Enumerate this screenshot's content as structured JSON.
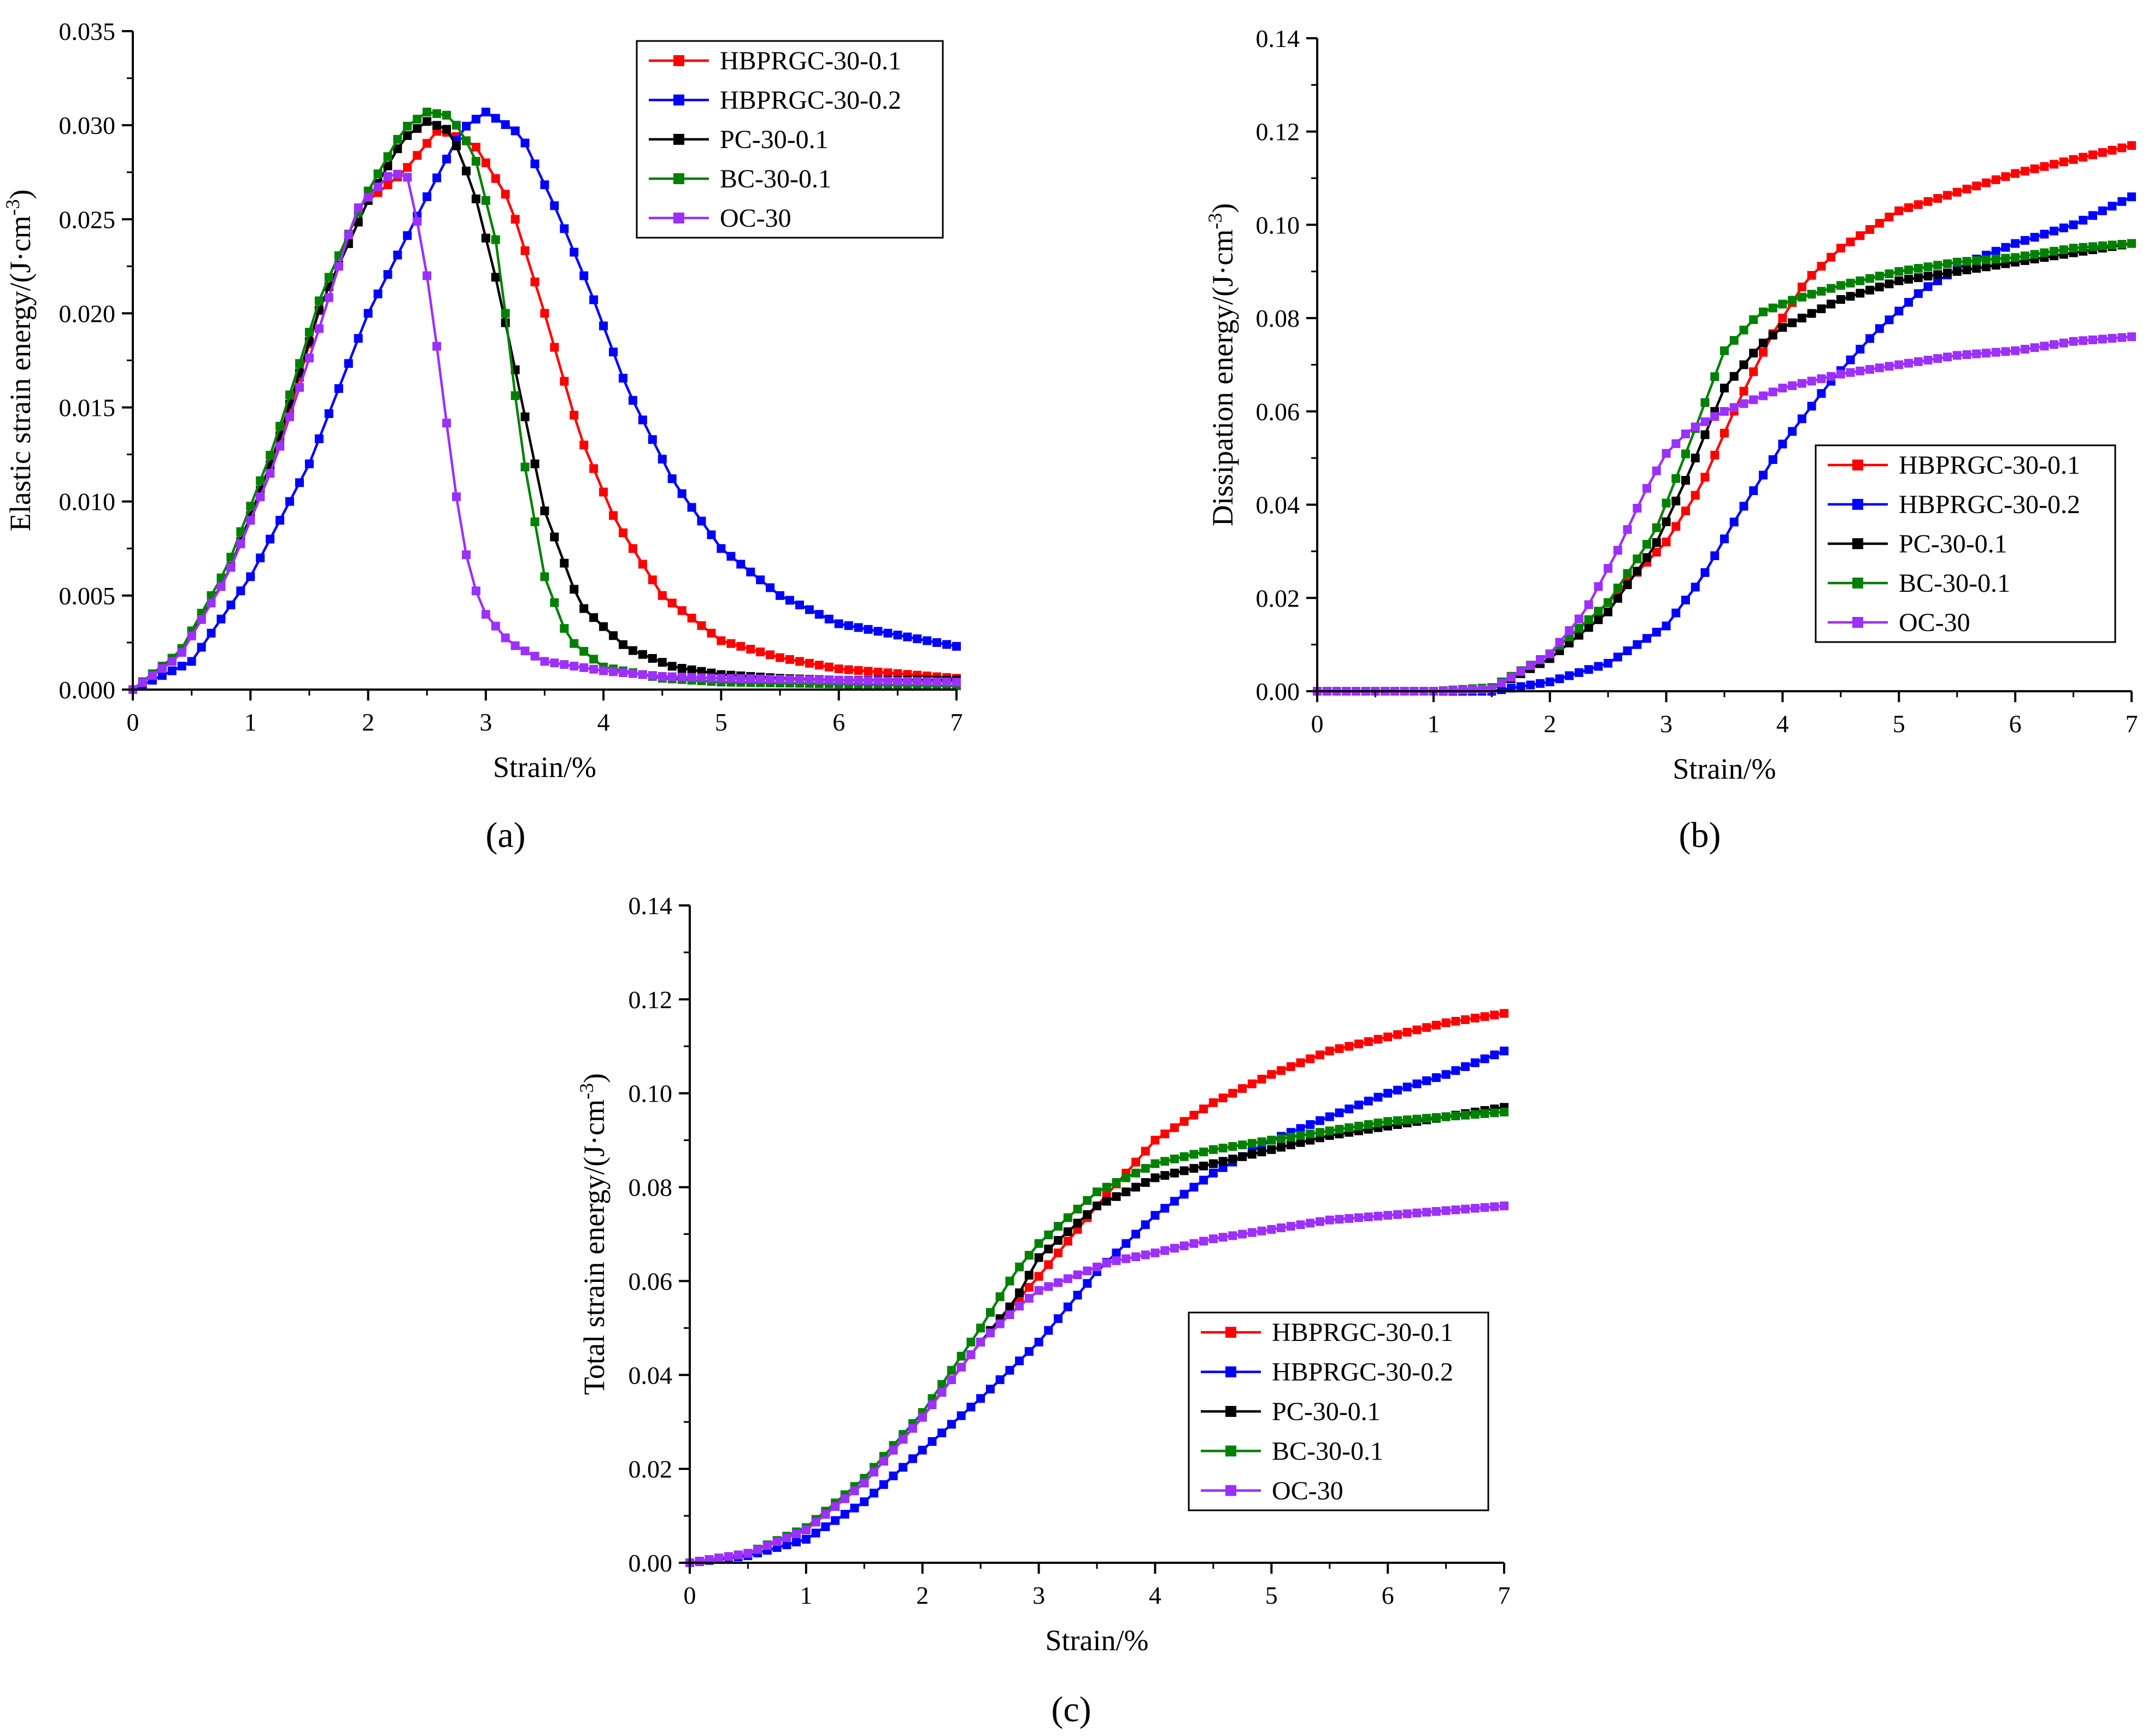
{
  "chart_data": [
    {
      "type": "line",
      "panel_label": "(a)",
      "title": "",
      "xlabel": "Strain/%",
      "ylabel_main": "Elastic strain energy/(J·cm",
      "ylabel_sup": "-3",
      "ylabel_end": ")",
      "xlim": [
        0,
        7
      ],
      "ylim": [
        0,
        0.035
      ],
      "xticks": [
        0,
        1,
        2,
        3,
        4,
        5,
        6,
        7
      ],
      "xtick_labels": [
        "0",
        "1",
        "2",
        "3",
        "4",
        "5",
        "6",
        "7"
      ],
      "yticks": [
        0,
        0.005,
        0.01,
        0.015,
        0.02,
        0.025,
        0.03,
        0.035
      ],
      "ytick_labels": [
        "0.000",
        "0.005",
        "0.010",
        "0.015",
        "0.020",
        "0.025",
        "0.030",
        "0.035"
      ],
      "grid": false,
      "legend_position": "top-right",
      "series": [
        {
          "name": "HBPRGC-30-0.1",
          "color": "#ff0000",
          "x": [
            0,
            0.4,
            0.8,
            1.2,
            1.6,
            2.0,
            2.3,
            2.6,
            2.9,
            3.2,
            3.5,
            3.8,
            4.1,
            4.5,
            5.0,
            5.5,
            6.0,
            7.0
          ],
          "y": [
            0,
            0.002,
            0.006,
            0.012,
            0.0205,
            0.026,
            0.0275,
            0.0298,
            0.029,
            0.026,
            0.02,
            0.0135,
            0.009,
            0.005,
            0.0026,
            0.0017,
            0.0011,
            0.0006
          ]
        },
        {
          "name": "HBPRGC-30-0.2",
          "color": "#0000ff",
          "x": [
            0,
            0.5,
            1.0,
            1.5,
            2.0,
            2.5,
            2.8,
            3.0,
            3.3,
            3.6,
            3.9,
            4.2,
            4.6,
            5.0,
            5.5,
            6.0,
            7.0
          ],
          "y": [
            0,
            0.0015,
            0.006,
            0.012,
            0.02,
            0.0262,
            0.0298,
            0.0307,
            0.0295,
            0.0255,
            0.021,
            0.016,
            0.011,
            0.0075,
            0.005,
            0.0035,
            0.0023
          ]
        },
        {
          "name": "PC-30-0.1",
          "color": "#000000",
          "x": [
            0,
            0.4,
            0.8,
            1.2,
            1.6,
            2.0,
            2.3,
            2.5,
            2.7,
            2.9,
            3.1,
            3.3,
            3.5,
            3.8,
            4.2,
            4.6,
            5.0,
            5.5,
            6.0,
            7.0
          ],
          "y": [
            0,
            0.002,
            0.006,
            0.0125,
            0.0205,
            0.026,
            0.0293,
            0.0302,
            0.0297,
            0.0265,
            0.0215,
            0.0155,
            0.0095,
            0.0045,
            0.0022,
            0.0012,
            0.0008,
            0.0006,
            0.0005,
            0.0005
          ]
        },
        {
          "name": "BC-30-0.1",
          "color": "#008000",
          "x": [
            0,
            0.4,
            0.8,
            1.2,
            1.6,
            2.0,
            2.3,
            2.5,
            2.7,
            2.9,
            3.1,
            3.3,
            3.5,
            3.7,
            4.0,
            4.5,
            5.0,
            6.0,
            7.0
          ],
          "y": [
            0,
            0.002,
            0.0065,
            0.013,
            0.021,
            0.0265,
            0.0298,
            0.0307,
            0.0305,
            0.0285,
            0.0235,
            0.013,
            0.006,
            0.0027,
            0.0012,
            0.0006,
            0.0004,
            0.0003,
            0.0002
          ]
        },
        {
          "name": "OC-30",
          "color": "#9b30ff",
          "x": [
            0,
            0.4,
            0.8,
            1.2,
            1.6,
            1.9,
            2.2,
            2.35,
            2.5,
            2.6,
            2.7,
            2.8,
            2.9,
            3.0,
            3.2,
            3.5,
            4.0,
            4.5,
            5.0,
            6.0,
            7.0
          ],
          "y": [
            0,
            0.0018,
            0.006,
            0.012,
            0.0195,
            0.0255,
            0.0275,
            0.0272,
            0.022,
            0.0175,
            0.0125,
            0.008,
            0.0055,
            0.004,
            0.0025,
            0.0015,
            0.001,
            0.0007,
            0.0006,
            0.0005,
            0.0004
          ]
        }
      ]
    },
    {
      "type": "line",
      "panel_label": "(b)",
      "title": "",
      "xlabel": "Strain/%",
      "ylabel_main": "Dissipation energy/(J·cm",
      "ylabel_sup": "-3",
      "ylabel_end": ")",
      "xlim": [
        0,
        7
      ],
      "ylim": [
        0,
        0.14
      ],
      "xticks": [
        0,
        1,
        2,
        3,
        4,
        5,
        6,
        7
      ],
      "xtick_labels": [
        "0",
        "1",
        "2",
        "3",
        "4",
        "5",
        "6",
        "7"
      ],
      "yticks": [
        0,
        0.02,
        0.04,
        0.06,
        0.08,
        0.1,
        0.12,
        0.14
      ],
      "ytick_labels": [
        "0.00",
        "0.02",
        "0.04",
        "0.06",
        "0.08",
        "0.10",
        "0.12",
        "0.14"
      ],
      "grid": false,
      "legend_position": "bottom-right",
      "series": [
        {
          "name": "HBPRGC-30-0.1",
          "color": "#ff0000",
          "x": [
            0,
            1.0,
            1.5,
            2.0,
            2.5,
            3.0,
            3.3,
            3.6,
            3.9,
            4.2,
            4.5,
            5.0,
            5.5,
            6.0,
            6.5,
            7.0
          ],
          "y": [
            0,
            0,
            0.0005,
            0.008,
            0.019,
            0.032,
            0.044,
            0.061,
            0.076,
            0.088,
            0.095,
            0.103,
            0.107,
            0.111,
            0.114,
            0.117
          ]
        },
        {
          "name": "HBPRGC-30-0.2",
          "color": "#0000ff",
          "x": [
            0,
            1.5,
            2.0,
            2.5,
            3.0,
            3.3,
            3.6,
            4.0,
            4.4,
            4.8,
            5.2,
            5.6,
            6.0,
            6.5,
            7.0
          ],
          "y": [
            0,
            0,
            0.002,
            0.006,
            0.014,
            0.024,
            0.037,
            0.053,
            0.066,
            0.077,
            0.086,
            0.092,
            0.096,
            0.1,
            0.106
          ]
        },
        {
          "name": "PC-30-0.1",
          "color": "#000000",
          "x": [
            0,
            1.0,
            1.5,
            2.0,
            2.5,
            2.9,
            3.2,
            3.5,
            3.8,
            4.0,
            4.5,
            5.0,
            5.5,
            6.0,
            6.5,
            7.0
          ],
          "y": [
            0,
            0,
            0.0005,
            0.007,
            0.017,
            0.031,
            0.047,
            0.065,
            0.074,
            0.078,
            0.084,
            0.088,
            0.09,
            0.092,
            0.094,
            0.096
          ]
        },
        {
          "name": "BC-30-0.1",
          "color": "#008000",
          "x": [
            0,
            1.0,
            1.5,
            2.0,
            2.5,
            2.9,
            3.2,
            3.5,
            3.8,
            4.1,
            4.5,
            5.0,
            5.5,
            6.0,
            6.5,
            7.0
          ],
          "y": [
            0,
            0,
            0.0008,
            0.008,
            0.019,
            0.034,
            0.053,
            0.073,
            0.081,
            0.084,
            0.087,
            0.09,
            0.092,
            0.093,
            0.095,
            0.096
          ]
        },
        {
          "name": "OC-30",
          "color": "#9b30ff",
          "x": [
            0,
            1.0,
            1.5,
            2.0,
            2.3,
            2.6,
            2.8,
            3.0,
            3.2,
            3.5,
            4.0,
            4.5,
            5.0,
            5.5,
            6.0,
            6.5,
            7.0
          ],
          "y": [
            0,
            0,
            0.0005,
            0.008,
            0.017,
            0.031,
            0.042,
            0.051,
            0.056,
            0.06,
            0.065,
            0.068,
            0.07,
            0.072,
            0.073,
            0.075,
            0.076
          ]
        }
      ]
    },
    {
      "type": "line",
      "panel_label": "(c)",
      "title": "",
      "xlabel": "Strain/%",
      "ylabel_main": "Total strain energy/(J·cm",
      "ylabel_sup": "-3",
      "ylabel_end": ")",
      "xlim": [
        0,
        7
      ],
      "ylim": [
        0,
        0.14
      ],
      "xticks": [
        0,
        1,
        2,
        3,
        4,
        5,
        6,
        7
      ],
      "xtick_labels": [
        "0",
        "1",
        "2",
        "3",
        "4",
        "5",
        "6",
        "7"
      ],
      "yticks": [
        0,
        0.02,
        0.04,
        0.06,
        0.08,
        0.1,
        0.12,
        0.14
      ],
      "ytick_labels": [
        "0.00",
        "0.02",
        "0.04",
        "0.06",
        "0.08",
        "0.10",
        "0.12",
        "0.14"
      ],
      "grid": false,
      "legend_position": "bottom-right",
      "series": [
        {
          "name": "HBPRGC-30-0.1",
          "color": "#ff0000",
          "x": [
            0,
            0.5,
            1.0,
            1.5,
            2.0,
            2.5,
            3.0,
            3.5,
            4.0,
            4.5,
            5.0,
            5.5,
            6.0,
            6.5,
            7.0
          ],
          "y": [
            0,
            0.002,
            0.007,
            0.017,
            0.031,
            0.047,
            0.061,
            0.076,
            0.09,
            0.098,
            0.104,
            0.109,
            0.112,
            0.115,
            0.117
          ]
        },
        {
          "name": "HBPRGC-30-0.2",
          "color": "#0000ff",
          "x": [
            0,
            0.5,
            1.0,
            1.5,
            2.0,
            2.5,
            3.0,
            3.5,
            4.0,
            4.5,
            5.0,
            5.5,
            6.0,
            6.5,
            7.0
          ],
          "y": [
            0,
            0.0015,
            0.005,
            0.013,
            0.024,
            0.035,
            0.047,
            0.062,
            0.074,
            0.083,
            0.09,
            0.095,
            0.1,
            0.104,
            0.109
          ]
        },
        {
          "name": "PC-30-0.1",
          "color": "#000000",
          "x": [
            0,
            0.5,
            1.0,
            1.5,
            2.0,
            2.5,
            2.8,
            3.0,
            3.5,
            4.0,
            4.5,
            5.0,
            5.5,
            6.0,
            6.5,
            7.0
          ],
          "y": [
            0,
            0.002,
            0.007,
            0.017,
            0.031,
            0.047,
            0.056,
            0.065,
            0.076,
            0.082,
            0.085,
            0.088,
            0.091,
            0.093,
            0.095,
            0.097
          ]
        },
        {
          "name": "BC-30-0.1",
          "color": "#008000",
          "x": [
            0,
            0.5,
            1.0,
            1.5,
            2.0,
            2.5,
            2.8,
            3.0,
            3.5,
            4.0,
            4.5,
            5.0,
            5.5,
            6.0,
            6.5,
            7.0
          ],
          "y": [
            0,
            0.002,
            0.0075,
            0.018,
            0.032,
            0.05,
            0.062,
            0.068,
            0.079,
            0.085,
            0.088,
            0.09,
            0.092,
            0.094,
            0.095,
            0.096
          ]
        },
        {
          "name": "OC-30",
          "color": "#9b30ff",
          "x": [
            0,
            0.5,
            1.0,
            1.5,
            2.0,
            2.5,
            2.8,
            3.0,
            3.3,
            3.6,
            4.0,
            4.5,
            5.0,
            5.5,
            6.0,
            6.5,
            7.0
          ],
          "y": [
            0,
            0.002,
            0.007,
            0.017,
            0.031,
            0.047,
            0.054,
            0.058,
            0.061,
            0.064,
            0.066,
            0.069,
            0.071,
            0.073,
            0.074,
            0.075,
            0.076
          ]
        }
      ]
    }
  ]
}
